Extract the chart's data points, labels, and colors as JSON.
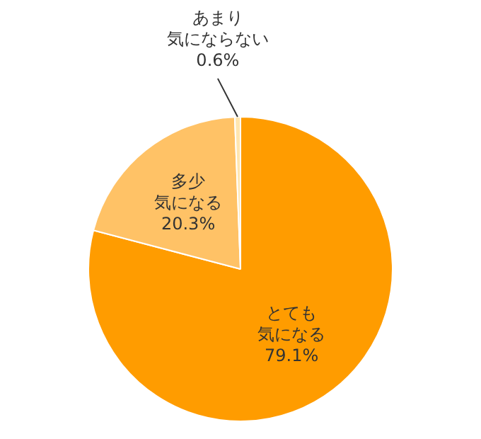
{
  "chart_data": {
    "type": "pie",
    "categories": [
      "とても気になる",
      "多少気になる",
      "あまり気にならない"
    ],
    "values": [
      79.1,
      20.3,
      0.6
    ],
    "colors": [
      "#ff9c00",
      "#ffc266",
      "#ffe6b0"
    ],
    "value_labels": [
      "79.1%",
      "20.3%",
      "0.6%"
    ],
    "legend": false
  }
}
